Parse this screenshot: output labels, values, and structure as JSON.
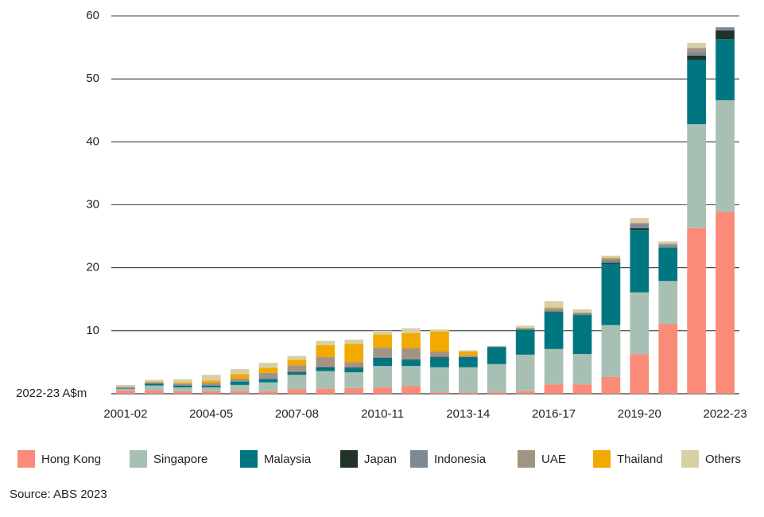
{
  "chart_data": {
    "type": "stacked_bar",
    "y_axis_label": "2022-23 A$m",
    "source": "Source: ABS 2023",
    "categories": [
      "2001-02",
      null,
      null,
      "2004-05",
      null,
      null,
      "2007-08",
      null,
      null,
      "2010-11",
      null,
      null,
      "2013-14",
      null,
      null,
      "2016-17",
      null,
      null,
      "2019-20",
      null,
      null,
      "2022-23"
    ],
    "series": [
      {
        "name": "Hong Kong",
        "color": "#f98b78",
        "values": [
          0.5,
          0.5,
          0.4,
          0.4,
          0.4,
          0.4,
          0.7,
          0.8,
          0.9,
          1.0,
          1.2,
          0.2,
          0.2,
          0.2,
          0.4,
          1.5,
          1.5,
          2.7,
          6.3,
          11.1,
          26.3,
          28.9
        ]
      },
      {
        "name": "Singapore",
        "color": "#a8c0b4",
        "values": [
          0.3,
          0.8,
          0.6,
          0.6,
          1.0,
          1.4,
          2.3,
          2.8,
          2.5,
          3.4,
          3.2,
          4.0,
          4.0,
          4.5,
          5.8,
          5.6,
          4.8,
          8.2,
          9.8,
          6.8,
          16.5,
          17.7
        ]
      },
      {
        "name": "Malaysia",
        "color": "#007681",
        "values": [
          0.1,
          0.3,
          0.3,
          0.3,
          0.5,
          0.5,
          0.3,
          0.5,
          0.6,
          1.2,
          0.9,
          1.5,
          1.5,
          2.7,
          4.0,
          5.8,
          6.2,
          9.7,
          9.9,
          5.3,
          10.2,
          9.7
        ]
      },
      {
        "name": "Japan",
        "color": "#1f3329",
        "values": [
          0,
          0,
          0,
          0,
          0,
          0,
          0.1,
          0.1,
          0.1,
          0.1,
          0.1,
          0.1,
          0.1,
          0,
          0,
          0.1,
          0,
          0.2,
          0.3,
          0,
          0.7,
          1.4
        ]
      },
      {
        "name": "Indonesia",
        "color": "#7d8a95",
        "values": [
          0.1,
          0.1,
          0.2,
          0.2,
          0.2,
          0.3,
          0.3,
          0.2,
          0.2,
          0.2,
          0.2,
          0.2,
          0.1,
          0.1,
          0.1,
          0.3,
          0.2,
          0.5,
          0.6,
          0.4,
          0.6,
          0.5
        ]
      },
      {
        "name": "UAE",
        "color": "#a39382",
        "values": [
          0.1,
          0.1,
          0.1,
          0.2,
          0.3,
          0.7,
          0.8,
          1.4,
          0.7,
          1.4,
          1.6,
          0.7,
          0.2,
          0,
          0.1,
          0.3,
          0.2,
          0.2,
          0.2,
          0.2,
          0.6,
          0
        ]
      },
      {
        "name": "Thailand",
        "color": "#f2a900",
        "values": [
          0,
          0.1,
          0.2,
          0.4,
          0.7,
          0.8,
          0.9,
          1.9,
          2.9,
          2.1,
          2.4,
          3.2,
          0.6,
          0,
          0.1,
          0.1,
          0,
          0.1,
          0,
          0,
          0,
          0
        ]
      },
      {
        "name": "Others",
        "color": "#d9cfa4",
        "values": [
          0.3,
          0.3,
          0.5,
          0.9,
          0.8,
          0.8,
          0.6,
          0.7,
          0.7,
          0.6,
          0.8,
          0.3,
          0.2,
          0.1,
          0.3,
          1.0,
          0.5,
          0.3,
          0.8,
          0.4,
          0.8,
          0
        ]
      }
    ],
    "ylim": [
      0,
      60
    ],
    "yticks": [
      10,
      20,
      30,
      40,
      50,
      60
    ],
    "grid": true
  }
}
